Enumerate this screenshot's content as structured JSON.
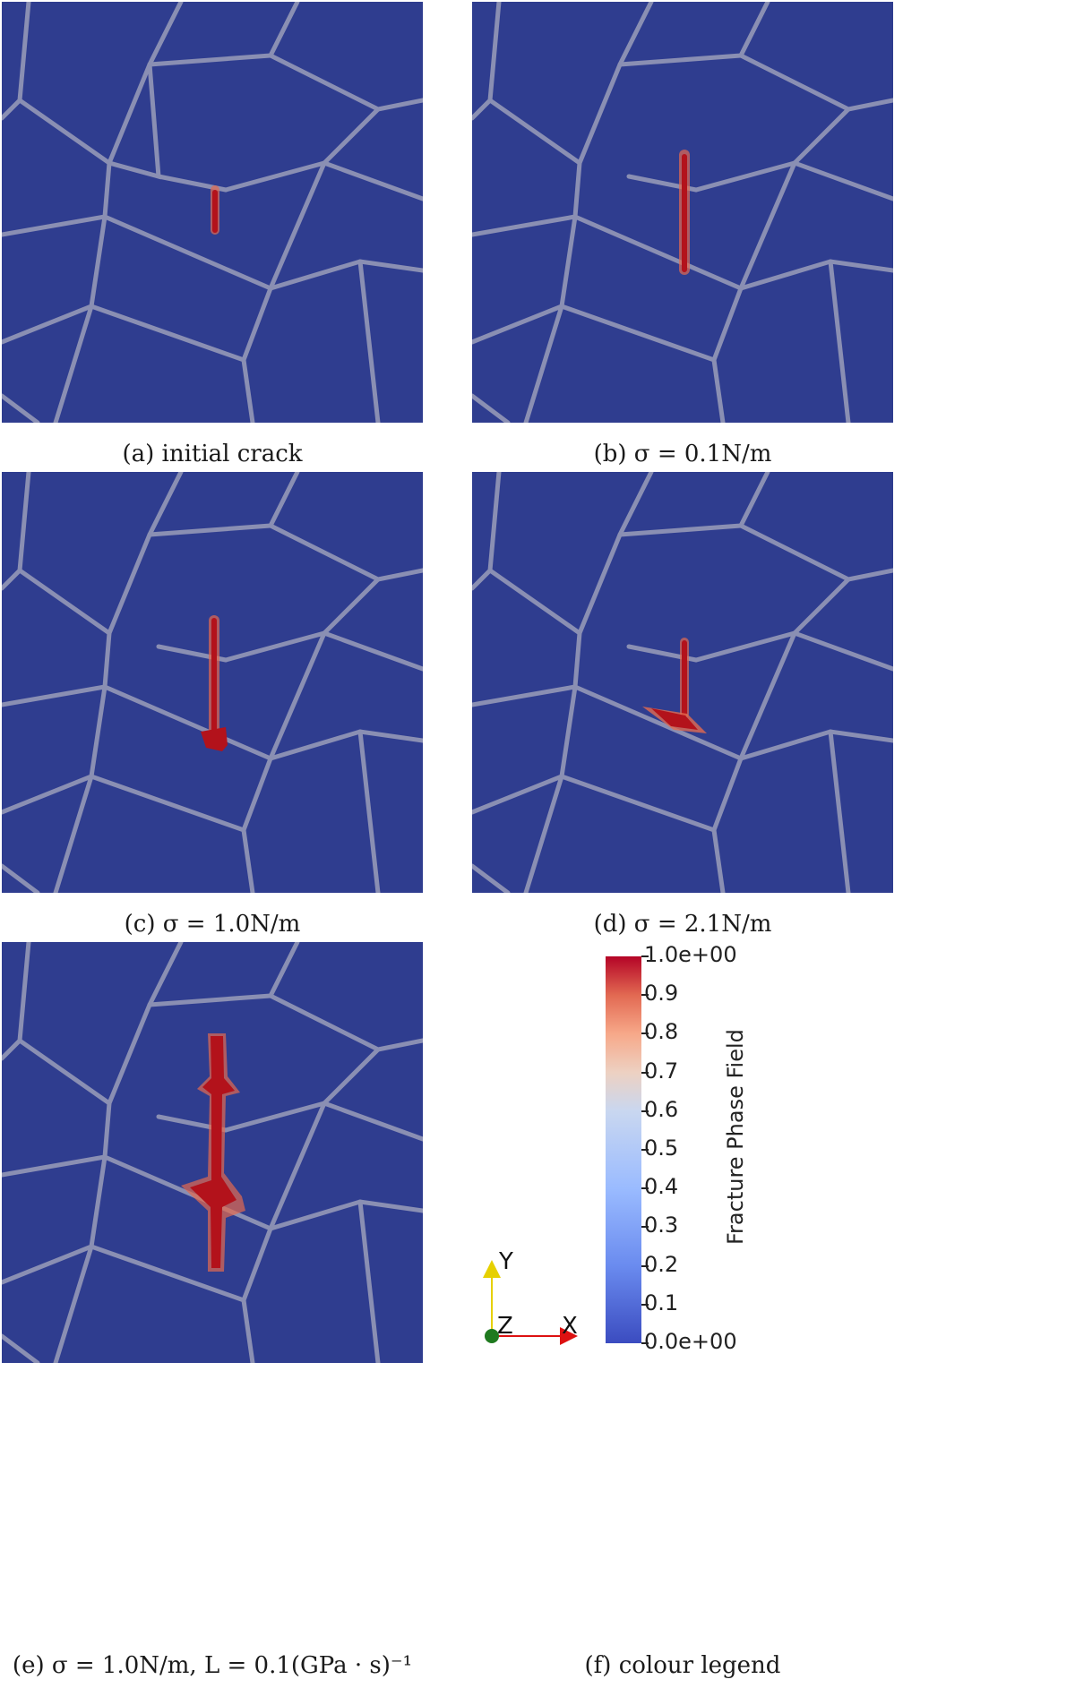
{
  "figure": {
    "panels": [
      {
        "id": "a",
        "caption": "(a) initial crack"
      },
      {
        "id": "b",
        "caption": "(b) σ = 0.1N/m"
      },
      {
        "id": "c",
        "caption": "(c) σ = 1.0N/m"
      },
      {
        "id": "d",
        "caption": "(d) σ = 2.1N/m"
      },
      {
        "id": "e",
        "caption": "(e) σ = 1.0N/m, L = 0.1(GPa · s)⁻¹"
      },
      {
        "id": "f",
        "caption": "(f) colour legend"
      }
    ],
    "colors": {
      "background_field": "#2f3d8f",
      "grain_boundary": "#8a8fb3",
      "crack_core": "#b3121b",
      "crack_halo": "#e46a4f"
    },
    "legend": {
      "title": "Fracture Phase Field",
      "ticks": [
        "1.0e+00",
        "0.9",
        "0.8",
        "0.7",
        "0.6",
        "0.5",
        "0.4",
        "0.3",
        "0.2",
        "0.1",
        "0.0e+00"
      ],
      "tick_values": [
        1.0,
        0.9,
        0.8,
        0.7,
        0.6,
        0.5,
        0.4,
        0.3,
        0.2,
        0.1,
        0.0
      ],
      "colormap": [
        "#3b4cc0",
        "#6a8bef",
        "#9abbff",
        "#c9d7f0",
        "#edd1c2",
        "#f7a889",
        "#e26952",
        "#b40426"
      ]
    },
    "axes": {
      "y": "Y",
      "z": "Z",
      "x": "X"
    }
  }
}
